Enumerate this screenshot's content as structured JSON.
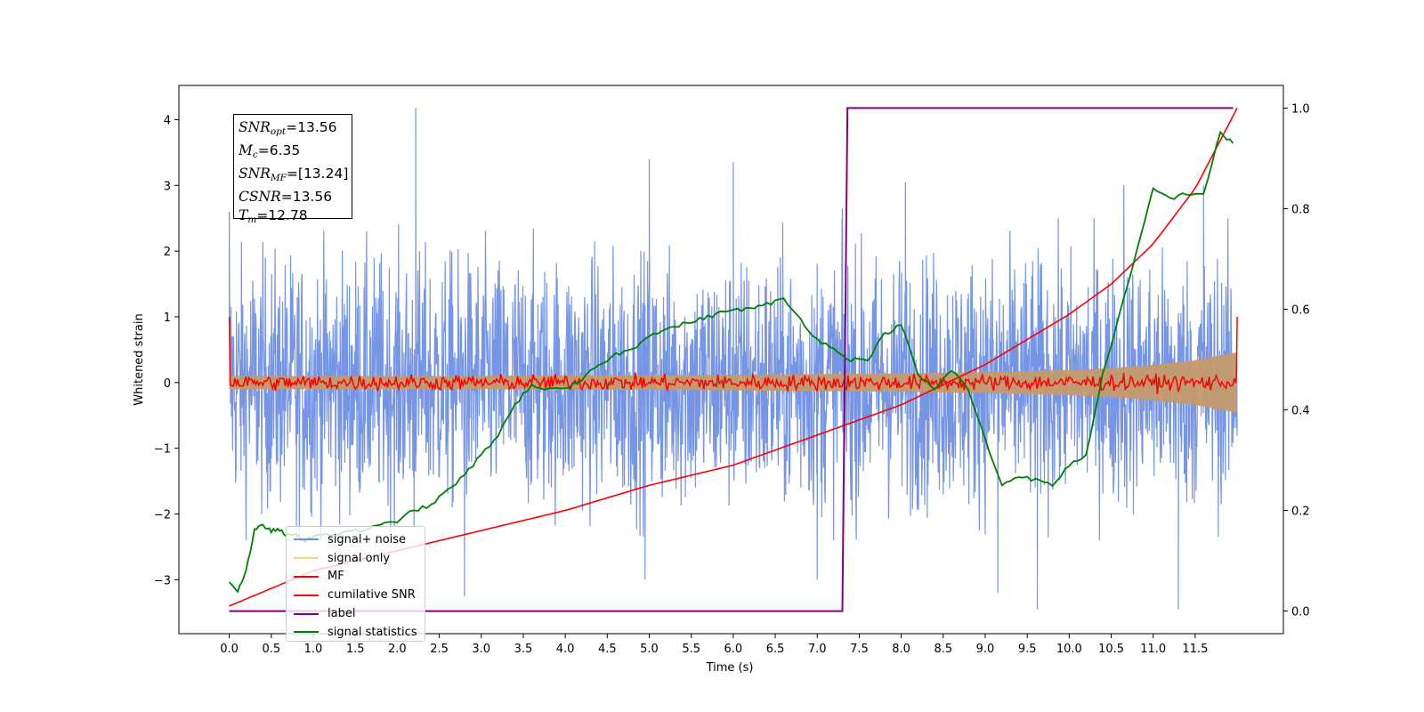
{
  "chart_data": {
    "type": "line",
    "xlabel": "Time (s)",
    "ylabel": "Whitened strain",
    "xlim": [
      -0.6,
      12.55
    ],
    "ylim": [
      -3.82,
      4.52
    ],
    "y2lim": [
      -0.045,
      1.045
    ],
    "x_ticks": [
      "0.0",
      "0.5",
      "1.0",
      "1.5",
      "2.0",
      "2.5",
      "3.0",
      "3.5",
      "4.0",
      "4.5",
      "5.0",
      "5.5",
      "6.0",
      "6.5",
      "7.0",
      "7.5",
      "8.0",
      "8.5",
      "9.0",
      "9.5",
      "10.0",
      "10.5",
      "11.0",
      "11.5"
    ],
    "y_ticks": [
      "−3",
      "−2",
      "−1",
      "0",
      "1",
      "2",
      "3",
      "4"
    ],
    "y2_ticks": [
      "0.0",
      "0.2",
      "0.4",
      "0.6",
      "0.8",
      "1.0"
    ],
    "info_box": {
      "snr_opt": {
        "name": "SNR",
        "sub": "opt",
        "value": "=13.56"
      },
      "mc": {
        "name": "M",
        "sub": "c",
        "value": "=6.35"
      },
      "snr_mf": {
        "name": "SNR",
        "sub": "MF",
        "value": "=[13.24]"
      },
      "csnr": {
        "name": "CSNR",
        "sub": "",
        "value": "=13.56"
      },
      "tm": {
        "name": "T",
        "sub": "m",
        "value": "=12.78"
      }
    },
    "legend_position": "lower-left",
    "legend": [
      {
        "label": "signal+ noise",
        "color": "#6f8fe3"
      },
      {
        "label": "signal only",
        "color": "#ffd27f"
      },
      {
        "label": "MF",
        "color": "#ff0000"
      },
      {
        "label": "cumilative SNR",
        "color": "#ff0000"
      },
      {
        "label": "label",
        "color": "#800080"
      },
      {
        "label": "signal statistics",
        "color": "#008000"
      }
    ],
    "series": [
      {
        "name": "signal+ noise",
        "axis": "left",
        "description_of_values": "white noise, amplitude envelope approx ±2.3 with spikes",
        "x_range": [
          0.0,
          12.0
        ],
        "envelope": [
          -2.4,
          2.5
        ],
        "spikes": [
          [
            0.0,
            2.6
          ],
          [
            2.22,
            4.18
          ],
          [
            2.2,
            -2.2
          ],
          [
            4.95,
            -3.0
          ],
          [
            5.0,
            3.4
          ],
          [
            6.0,
            3.35
          ],
          [
            7.0,
            -3.0
          ],
          [
            9.62,
            -3.45
          ],
          [
            11.3,
            -3.45
          ],
          [
            11.6,
            3.0
          ],
          [
            8.05,
            3.05
          ],
          [
            10.65,
            3.0
          ],
          [
            7.3,
            2.65
          ],
          [
            0.8,
            -2.4
          ],
          [
            2.8,
            -3.25
          ],
          [
            9.15,
            -3.2
          ]
        ]
      },
      {
        "name": "signal only",
        "axis": "left",
        "x": [
          0.0,
          1.0,
          2.0,
          3.0,
          4.0,
          5.0,
          6.0,
          7.0,
          8.0,
          9.0,
          10.0,
          10.5,
          11.0,
          11.5,
          12.0
        ],
        "envelope": [
          0.1,
          0.1,
          0.1,
          0.1,
          0.11,
          0.11,
          0.12,
          0.13,
          0.14,
          0.16,
          0.19,
          0.22,
          0.27,
          0.34,
          0.46
        ]
      },
      {
        "name": "MF",
        "axis": "left",
        "x_range": [
          0.0,
          12.0
        ],
        "start_value": 1.0,
        "end_value": 1.0,
        "jitter": 0.06
      },
      {
        "name": "cumilative SNR",
        "axis": "right",
        "x": [
          0.0,
          1.0,
          2.0,
          3.0,
          4.0,
          5.0,
          6.0,
          7.0,
          8.0,
          9.0,
          10.0,
          10.5,
          11.0,
          11.5,
          12.0
        ],
        "y": [
          0.01,
          0.08,
          0.12,
          0.16,
          0.2,
          0.25,
          0.29,
          0.35,
          0.41,
          0.49,
          0.59,
          0.65,
          0.73,
          0.84,
          1.0
        ]
      },
      {
        "name": "label",
        "axis": "right",
        "x": [
          0.0,
          7.3,
          7.36,
          11.95
        ],
        "y": [
          0.0,
          0.0,
          1.0,
          1.0
        ]
      },
      {
        "name": "signal statistics",
        "axis": "right",
        "x": [
          0.0,
          0.1,
          0.2,
          0.3,
          0.4,
          0.5,
          0.6,
          0.7,
          0.8,
          0.9,
          1.0,
          1.2,
          1.4,
          1.6,
          1.8,
          2.0,
          2.2,
          2.4,
          2.6,
          2.8,
          3.0,
          3.2,
          3.4,
          3.6,
          3.8,
          4.0,
          4.2,
          4.4,
          4.6,
          4.8,
          5.0,
          5.2,
          5.4,
          5.6,
          5.8,
          6.0,
          6.2,
          6.4,
          6.6,
          6.8,
          7.0,
          7.2,
          7.4,
          7.6,
          7.8,
          8.0,
          8.2,
          8.4,
          8.6,
          8.8,
          9.0,
          9.2,
          9.4,
          9.6,
          9.8,
          10.0,
          10.2,
          10.4,
          10.6,
          10.8,
          11.0,
          11.2,
          11.4,
          11.6,
          11.8,
          11.95
        ],
        "y": [
          0.06,
          0.04,
          0.08,
          0.16,
          0.17,
          0.16,
          0.16,
          0.15,
          0.15,
          0.14,
          0.15,
          0.15,
          0.16,
          0.16,
          0.17,
          0.18,
          0.2,
          0.21,
          0.24,
          0.27,
          0.31,
          0.35,
          0.41,
          0.45,
          0.44,
          0.44,
          0.46,
          0.49,
          0.51,
          0.52,
          0.55,
          0.56,
          0.57,
          0.58,
          0.59,
          0.6,
          0.6,
          0.61,
          0.62,
          0.58,
          0.54,
          0.52,
          0.5,
          0.5,
          0.55,
          0.57,
          0.47,
          0.44,
          0.48,
          0.44,
          0.34,
          0.25,
          0.27,
          0.26,
          0.25,
          0.29,
          0.31,
          0.47,
          0.59,
          0.71,
          0.84,
          0.82,
          0.83,
          0.83,
          0.95,
          0.93
        ]
      }
    ]
  }
}
